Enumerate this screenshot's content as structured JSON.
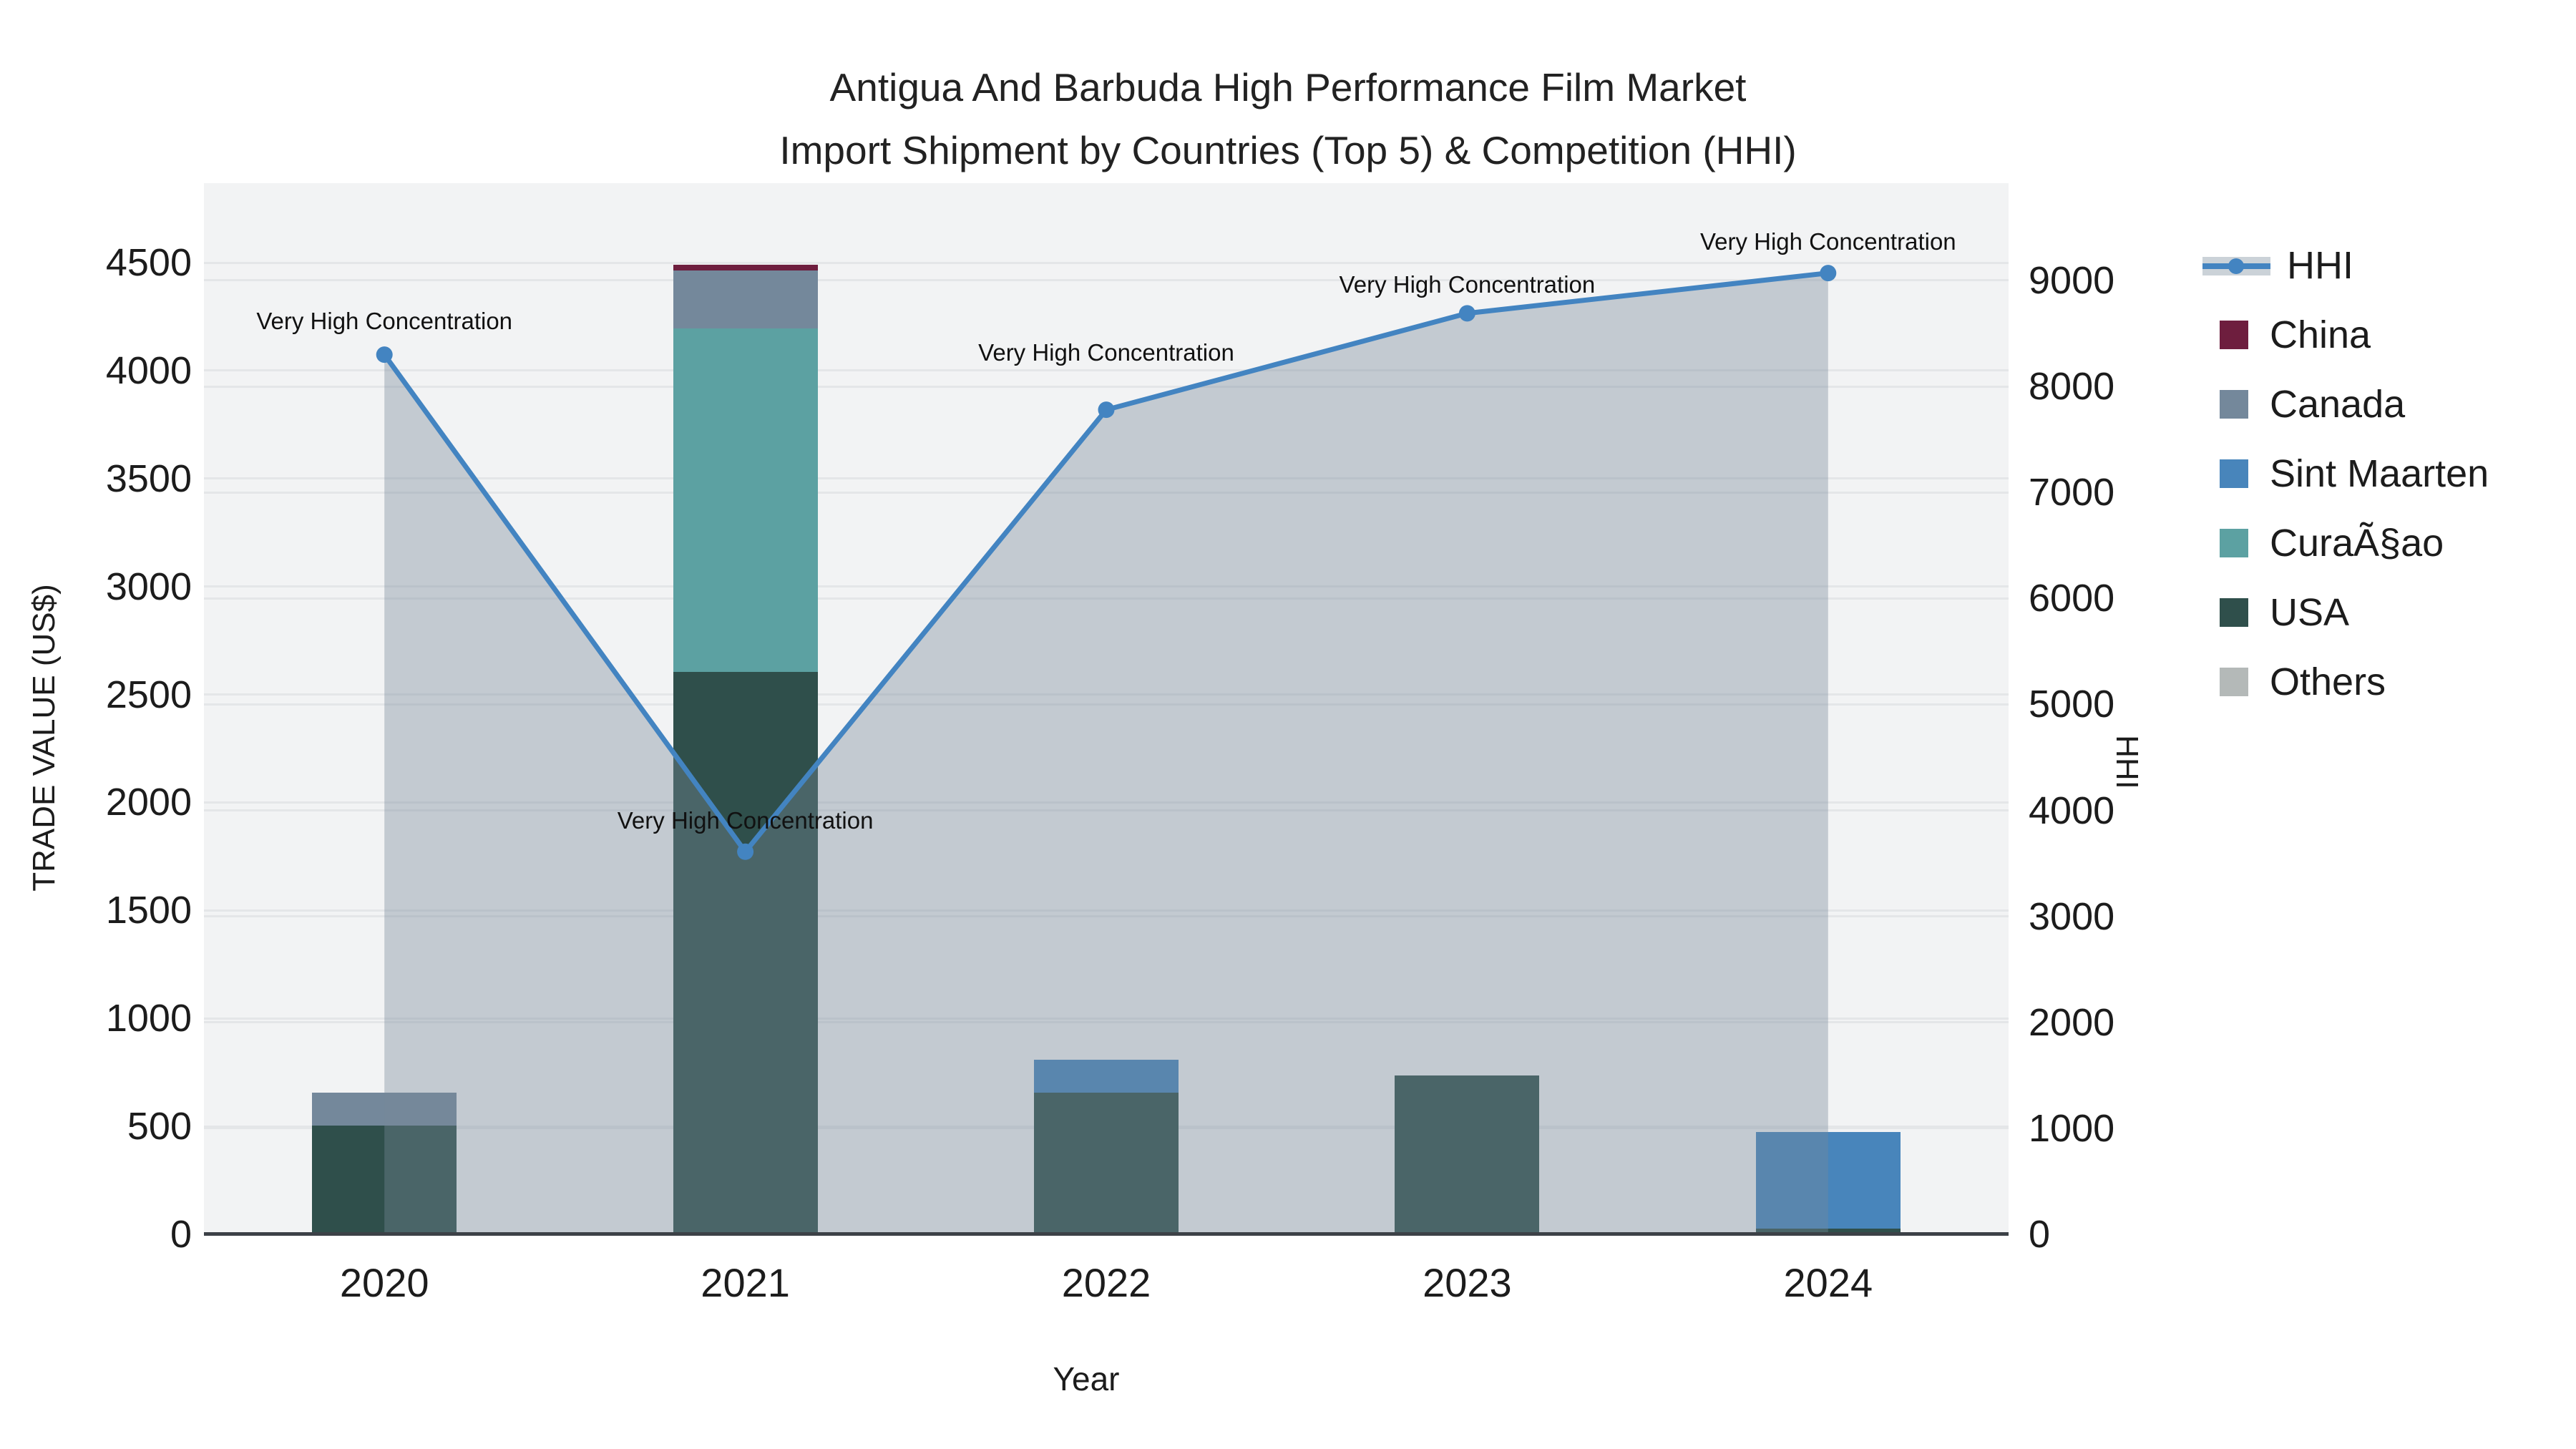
{
  "title": {
    "line1": "Antigua And Barbuda High Performance Film Market",
    "line2": "Import Shipment by Countries (Top 5) & Competition (HHI)"
  },
  "chart_data": {
    "type": "bar",
    "subtype": "stacked-bars-with-line-area-overlay",
    "categories": [
      "2020",
      "2021",
      "2022",
      "2023",
      "2024"
    ],
    "series": [
      {
        "name": "China",
        "color": "#6E1E3E",
        "values": [
          0,
          25,
          0,
          0,
          0
        ]
      },
      {
        "name": "Canada",
        "color": "#74889B",
        "values": [
          150,
          270,
          0,
          0,
          0
        ]
      },
      {
        "name": "Sint Maarten",
        "color": "#4885BB",
        "values": [
          0,
          0,
          155,
          0,
          450
        ]
      },
      {
        "name": "CuraÃ§ao",
        "color": "#5CA1A2",
        "values": [
          0,
          1590,
          0,
          0,
          0
        ]
      },
      {
        "name": "USA",
        "color": "#2F4F4B",
        "values": [
          505,
          2605,
          655,
          735,
          25
        ]
      },
      {
        "name": "Others",
        "color": "#B4B9B8",
        "values": [
          0,
          0,
          0,
          0,
          0
        ]
      }
    ],
    "stack_order_bottom_to_top": [
      "USA",
      "CuraÃ§ao",
      "Sint Maarten",
      "Canada",
      "China",
      "Others"
    ],
    "line_series": {
      "name": "HHI",
      "values": [
        8300,
        3610,
        7780,
        8690,
        9070
      ],
      "line_color": "#4384C1",
      "area_fill": "rgba(119,136,153,0.38)"
    },
    "annotations": [
      "Very High Concentration",
      "Very High Concentration",
      "Very High Concentration",
      "Very High Concentration",
      "Very High Concentration"
    ],
    "xlabel": "Year",
    "y_left": {
      "title": "TRADE VALUE (US$)",
      "ticks": [
        "0",
        "500",
        "1000",
        "1500",
        "2000",
        "2500",
        "3000",
        "3500",
        "4000",
        "4500"
      ],
      "range": [
        0,
        4868
      ]
    },
    "y_right": {
      "title": "HHI",
      "ticks": [
        "0",
        "1000",
        "2000",
        "3000",
        "4000",
        "5000",
        "6000",
        "7000",
        "8000",
        "9000"
      ],
      "range": [
        0,
        9918
      ]
    },
    "grid": true,
    "legend_position": "right",
    "plot_bg": "#F2F3F4",
    "grid_color": "#E4E6E8",
    "axis_line_color": "#3C4147"
  },
  "legend": {
    "items": [
      {
        "label": "HHI",
        "type": "line"
      },
      {
        "label": "China",
        "type": "swatch"
      },
      {
        "label": "Canada",
        "type": "swatch"
      },
      {
        "label": "Sint Maarten",
        "type": "swatch"
      },
      {
        "label": "CuraÃ§ao",
        "type": "swatch"
      },
      {
        "label": "USA",
        "type": "swatch"
      },
      {
        "label": "Others",
        "type": "swatch"
      }
    ]
  }
}
